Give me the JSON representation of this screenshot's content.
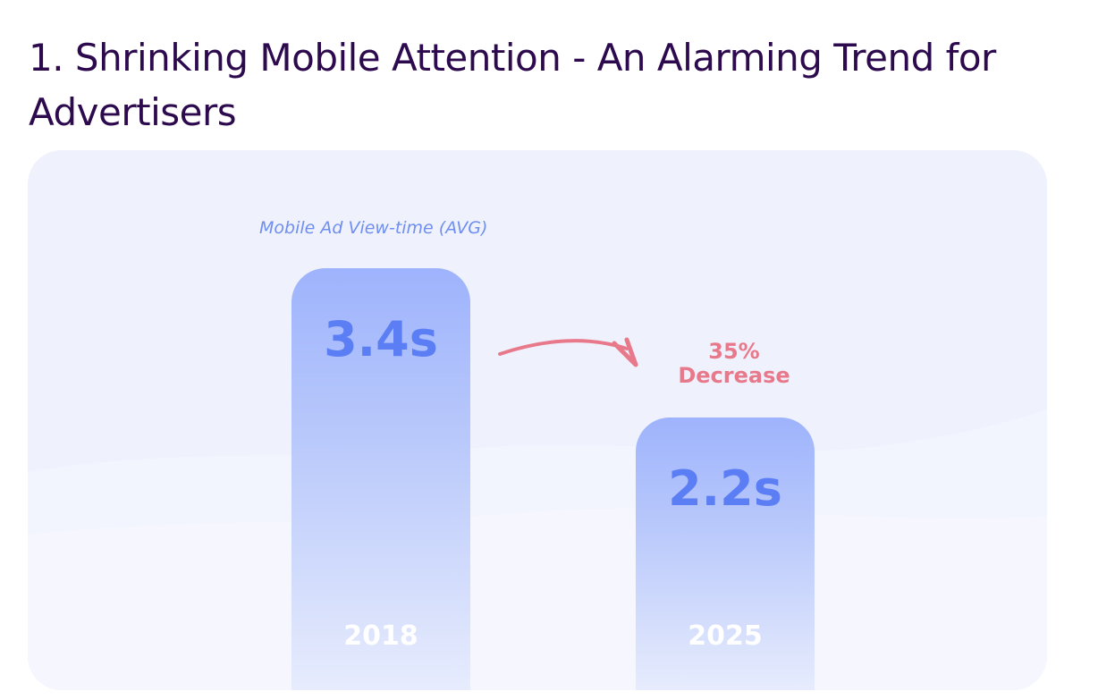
{
  "page": {
    "title": "1. Shrinking Mobile Attention - An Alarming Trend for Advertisers"
  },
  "chart_data": {
    "type": "bar",
    "title": "",
    "subtitle": "Mobile Ad View-time (AVG)",
    "xlabel": "",
    "ylabel": "",
    "categories": [
      "2018",
      "2025"
    ],
    "values": [
      3.4,
      2.2
    ],
    "value_labels": [
      "3.4s",
      "2.2s"
    ],
    "unit": "s",
    "annotation": {
      "line1": "35%",
      "line2": "Decrease",
      "color": "#e8798b"
    },
    "grid": false,
    "legend": "none",
    "colors": {
      "bar_top": "#9eb3fc",
      "bar_bottom": "#e7ecfd",
      "value_text": "#5b7ef5",
      "category_text": "#ffffff",
      "background": "#eff2fd"
    }
  }
}
